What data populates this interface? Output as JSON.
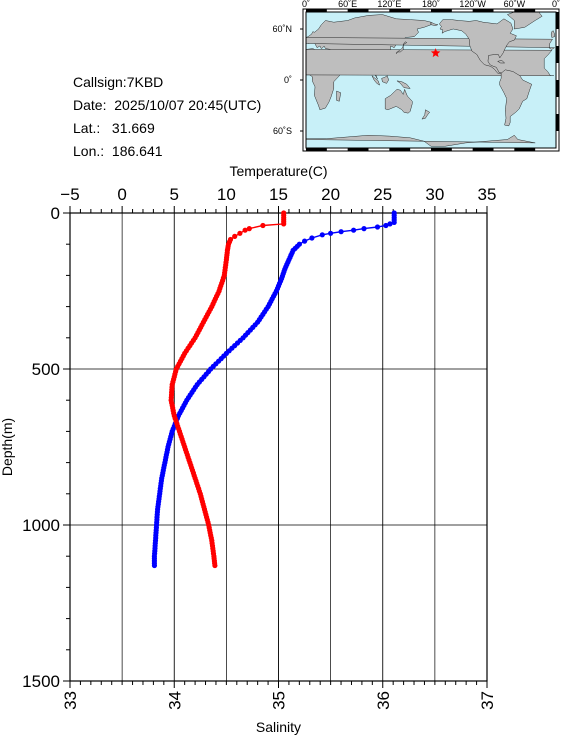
{
  "info": {
    "callsign": "Callsign:7KBD",
    "date_label": "Date:",
    "date": "2025/10/07 20:45(UTC)",
    "lat_label": "Lat.:",
    "lat": "31.669",
    "lon_label": "Lon.:",
    "lon": "186.641"
  },
  "map": {
    "top_ticks": [
      "0˚",
      "60˚E",
      "120˚E",
      "180˚",
      "120˚W",
      "60˚W",
      "0˚"
    ],
    "lat_ticks": [
      "60˚N",
      "0˚",
      "60˚S"
    ],
    "station_lat": 31.669,
    "station_lon": 186.641,
    "ocean_color": "#c8f0f8",
    "land_color": "#bebebe",
    "marker_color": "#ff0000"
  },
  "chart_data": {
    "type": "line",
    "title": "",
    "xlabel_top": "Temperature(C)",
    "xlabel_bottom": "Salinity",
    "ylabel": "Depth(m)",
    "temp_range": [
      -5,
      35
    ],
    "temp_ticks": [
      -5,
      0,
      5,
      10,
      15,
      20,
      25,
      30,
      35
    ],
    "sal_range": [
      33,
      37
    ],
    "sal_ticks": [
      33,
      34,
      35,
      36,
      37
    ],
    "depth_range": [
      0,
      1500
    ],
    "depth_ticks": [
      0,
      500,
      1000,
      1500
    ],
    "series": [
      {
        "quantity": "temperature",
        "color": "#0000ff",
        "depth": [
          0,
          15,
          30,
          35,
          40,
          45,
          50,
          55,
          60,
          65,
          70,
          80,
          90,
          100,
          120,
          150,
          180,
          210,
          250,
          300,
          350,
          400,
          450,
          500,
          550,
          600,
          650,
          700,
          750,
          800,
          850,
          900,
          950,
          1000,
          1050,
          1100,
          1130
        ],
        "values": [
          26.1,
          26.1,
          26.1,
          25.7,
          25.3,
          24.5,
          23.2,
          22.2,
          21.0,
          20.0,
          19.2,
          18.2,
          17.5,
          17.0,
          16.4,
          16.0,
          15.6,
          15.3,
          14.8,
          14.0,
          13.0,
          11.6,
          10.0,
          8.5,
          7.2,
          6.2,
          5.4,
          4.8,
          4.4,
          4.1,
          3.8,
          3.6,
          3.4,
          3.3,
          3.2,
          3.1,
          3.1
        ]
      },
      {
        "quantity": "salinity",
        "color": "#ff0000",
        "depth": [
          0,
          15,
          35,
          40,
          50,
          55,
          65,
          75,
          85,
          100,
          120,
          150,
          200,
          250,
          300,
          350,
          400,
          450,
          500,
          550,
          600,
          650,
          700,
          750,
          800,
          850,
          900,
          950,
          1000,
          1050,
          1100,
          1130
        ],
        "values": [
          35.05,
          35.05,
          35.05,
          34.85,
          34.72,
          34.68,
          34.63,
          34.58,
          34.54,
          34.52,
          34.51,
          34.5,
          34.48,
          34.43,
          34.36,
          34.28,
          34.2,
          34.1,
          34.02,
          33.98,
          33.97,
          34.0,
          34.05,
          34.1,
          34.15,
          34.2,
          34.25,
          34.29,
          34.33,
          34.36,
          34.38,
          34.39
        ]
      }
    ]
  }
}
